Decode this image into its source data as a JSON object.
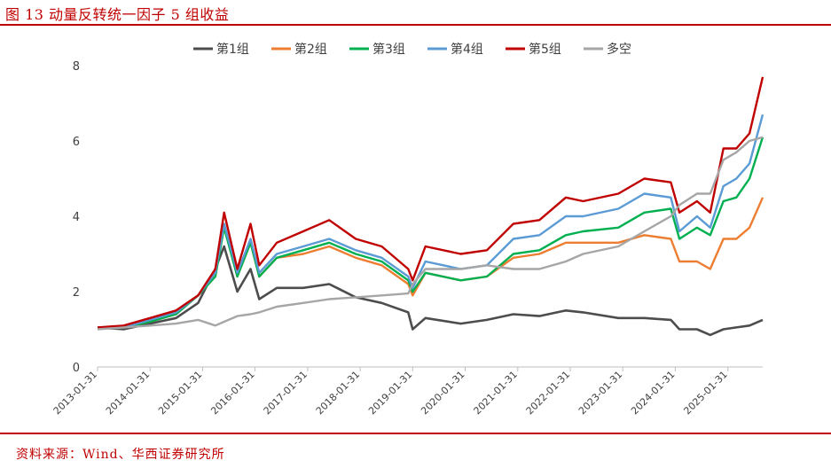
{
  "header": {
    "title": "图 13 动量反转统一因子 5 组收益"
  },
  "footer": {
    "source": "资料来源：Wind、华西证券研究所"
  },
  "chart_data": {
    "type": "line",
    "title": "",
    "xlabel": "",
    "ylabel": "",
    "ylim": [
      0,
      8
    ],
    "yticks": [
      0,
      2,
      4,
      6,
      8
    ],
    "xlim": [
      "2013-01-31",
      "2025-09-30"
    ],
    "xticks": [
      "2013-01-31",
      "2014-01-31",
      "2015-01-31",
      "2016-01-31",
      "2017-01-31",
      "2018-01-31",
      "2019-01-31",
      "2020-01-31",
      "2021-01-31",
      "2022-01-31",
      "2023-01-31",
      "2024-01-31",
      "2025-01-31"
    ],
    "grid": false,
    "legend": "top",
    "x": [
      "2013-01-31",
      "2013-07-31",
      "2014-01-31",
      "2014-07-31",
      "2014-12-31",
      "2015-04-30",
      "2015-06-30",
      "2015-09-30",
      "2015-12-31",
      "2016-02-29",
      "2016-06-30",
      "2016-12-31",
      "2017-06-30",
      "2017-12-31",
      "2018-06-30",
      "2018-12-31",
      "2019-01-31",
      "2019-04-30",
      "2019-12-31",
      "2020-06-30",
      "2020-12-31",
      "2021-06-30",
      "2021-12-31",
      "2022-04-30",
      "2022-12-31",
      "2023-06-30",
      "2023-12-31",
      "2024-02-29",
      "2024-06-30",
      "2024-09-30",
      "2024-12-31",
      "2025-03-31",
      "2025-06-30",
      "2025-09-30"
    ],
    "series": [
      {
        "name": "第1组",
        "color": "#4d4d4d",
        "values": [
          1.05,
          1.0,
          1.15,
          1.3,
          1.7,
          2.6,
          3.2,
          2.0,
          2.6,
          1.8,
          2.1,
          2.1,
          2.2,
          1.85,
          1.7,
          1.45,
          1.0,
          1.3,
          1.15,
          1.25,
          1.4,
          1.35,
          1.5,
          1.45,
          1.3,
          1.3,
          1.25,
          1.0,
          1.0,
          0.85,
          1.0,
          1.05,
          1.1,
          1.25
        ]
      },
      {
        "name": "第2组",
        "color": "#ed7d31",
        "values": [
          1.05,
          1.05,
          1.2,
          1.4,
          1.9,
          2.4,
          3.8,
          2.4,
          3.3,
          2.4,
          2.9,
          3.0,
          3.2,
          2.9,
          2.7,
          2.2,
          1.9,
          2.5,
          2.3,
          2.4,
          2.9,
          3.0,
          3.3,
          3.3,
          3.3,
          3.5,
          3.4,
          2.8,
          2.8,
          2.6,
          3.4,
          3.4,
          3.7,
          4.5
        ]
      },
      {
        "name": "第3组",
        "color": "#00b050",
        "values": [
          1.05,
          1.05,
          1.2,
          1.4,
          1.9,
          2.4,
          3.7,
          2.4,
          3.3,
          2.4,
          2.9,
          3.1,
          3.3,
          3.0,
          2.8,
          2.3,
          2.0,
          2.5,
          2.3,
          2.4,
          3.0,
          3.1,
          3.5,
          3.6,
          3.7,
          4.1,
          4.2,
          3.4,
          3.7,
          3.5,
          4.4,
          4.5,
          5.0,
          6.1
        ]
      },
      {
        "name": "第4组",
        "color": "#5b9bd5",
        "values": [
          1.05,
          1.05,
          1.25,
          1.45,
          1.9,
          2.5,
          3.8,
          2.5,
          3.4,
          2.5,
          3.0,
          3.2,
          3.4,
          3.1,
          2.9,
          2.4,
          2.1,
          2.8,
          2.6,
          2.7,
          3.4,
          3.5,
          4.0,
          4.0,
          4.2,
          4.6,
          4.5,
          3.6,
          4.0,
          3.7,
          4.8,
          5.0,
          5.4,
          6.7
        ]
      },
      {
        "name": "第5组",
        "color": "#c00000",
        "values": [
          1.05,
          1.1,
          1.3,
          1.5,
          1.9,
          2.6,
          4.1,
          2.6,
          3.8,
          2.7,
          3.3,
          3.6,
          3.9,
          3.4,
          3.2,
          2.6,
          2.3,
          3.2,
          3.0,
          3.1,
          3.8,
          3.9,
          4.5,
          4.4,
          4.6,
          5.0,
          4.9,
          4.1,
          4.4,
          4.1,
          5.8,
          5.8,
          6.2,
          7.7
        ]
      },
      {
        "name": "多空",
        "color": "#a6a6a6",
        "values": [
          1.0,
          1.05,
          1.1,
          1.15,
          1.25,
          1.1,
          1.2,
          1.35,
          1.4,
          1.45,
          1.6,
          1.7,
          1.8,
          1.85,
          1.9,
          1.95,
          2.2,
          2.6,
          2.6,
          2.7,
          2.6,
          2.6,
          2.8,
          3.0,
          3.2,
          3.6,
          4.0,
          4.3,
          4.6,
          4.6,
          5.5,
          5.7,
          6.0,
          6.1
        ]
      }
    ]
  }
}
